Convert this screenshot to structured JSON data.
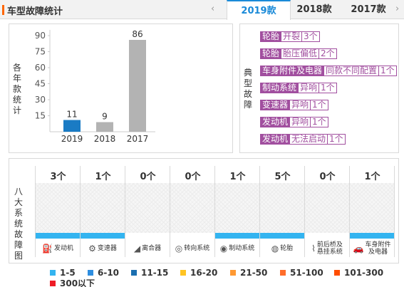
{
  "header": {
    "title": "车型故障统计",
    "prev_arrow": "‹",
    "next_arrow": "›",
    "tabs": [
      {
        "label": "2019款",
        "active": true
      },
      {
        "label": "2018款",
        "active": false
      },
      {
        "label": "2017款",
        "active": false
      }
    ]
  },
  "chart_label": "各年款统计",
  "chart_data": {
    "type": "bar",
    "categories": [
      "2019",
      "2018",
      "2017"
    ],
    "values": [
      11,
      9,
      86
    ],
    "yticks": [
      15,
      30,
      45,
      60,
      75,
      90
    ],
    "ylim": [
      0,
      90
    ],
    "highlight_color": "#1a7bc4",
    "bar_color": "#b3b3b3"
  },
  "typical": {
    "label": "典型故障",
    "items": [
      {
        "part": "轮胎",
        "issue": "开裂",
        "count": "3个"
      },
      {
        "part": "轮胎",
        "issue": "胎压偏低",
        "count": "2个"
      },
      {
        "part": "车身附件及电器",
        "issue": "同款不同配置",
        "count": "1个"
      },
      {
        "part": "制动系统",
        "issue": "异响",
        "count": "1个"
      },
      {
        "part": "变速器",
        "issue": "异响",
        "count": "1个"
      },
      {
        "part": "发动机",
        "issue": "异响",
        "count": "1个"
      },
      {
        "part": "发动机",
        "issue": "无法启动",
        "count": "1个"
      }
    ]
  },
  "systems": {
    "label": "八大系统故障图",
    "items": [
      {
        "count": "3个",
        "label": "发动机",
        "icon": "engine-icon",
        "glyph": "⛽",
        "bar": "#33b4f0"
      },
      {
        "count": "1个",
        "label": "变速器",
        "icon": "gear-lever-icon",
        "glyph": "⚙",
        "bar": "#33b4f0"
      },
      {
        "count": "0个",
        "label": "离合器",
        "icon": "clutch-pedal-icon",
        "glyph": "◢",
        "bar": ""
      },
      {
        "count": "0个",
        "label": "转向系统",
        "icon": "steering-wheel-icon",
        "glyph": "◎",
        "bar": ""
      },
      {
        "count": "1个",
        "label": "制动系统",
        "icon": "brake-disc-icon",
        "glyph": "◉",
        "bar": "#33b4f0"
      },
      {
        "count": "5个",
        "label": "轮胎",
        "icon": "tire-icon",
        "glyph": "◍",
        "bar": "#33b4f0"
      },
      {
        "count": "0个",
        "label": "前后桥及悬挂系统",
        "label1": "前后桥及",
        "label2": "悬挂系统",
        "icon": "suspension-icon",
        "glyph": "⌇",
        "bar": ""
      },
      {
        "count": "1个",
        "label": "车身附件及电器",
        "label1": "车身附件",
        "label2": "及电器",
        "icon": "car-body-icon",
        "glyph": "🚗",
        "bar": "#33b4f0"
      }
    ]
  },
  "legend": [
    {
      "label": "1-5",
      "color": "#33b4f0"
    },
    {
      "label": "6-10",
      "color": "#2e8ee0"
    },
    {
      "label": "11-15",
      "color": "#1a6fb0"
    },
    {
      "label": "16-20",
      "color": "#ffc423"
    },
    {
      "label": "21-50",
      "color": "#ff9933"
    },
    {
      "label": "51-100",
      "color": "#ff6d2a"
    },
    {
      "label": "101-300",
      "color": "#ff4d00"
    },
    {
      "label": "300以下",
      "color": "#ee1c25"
    }
  ]
}
